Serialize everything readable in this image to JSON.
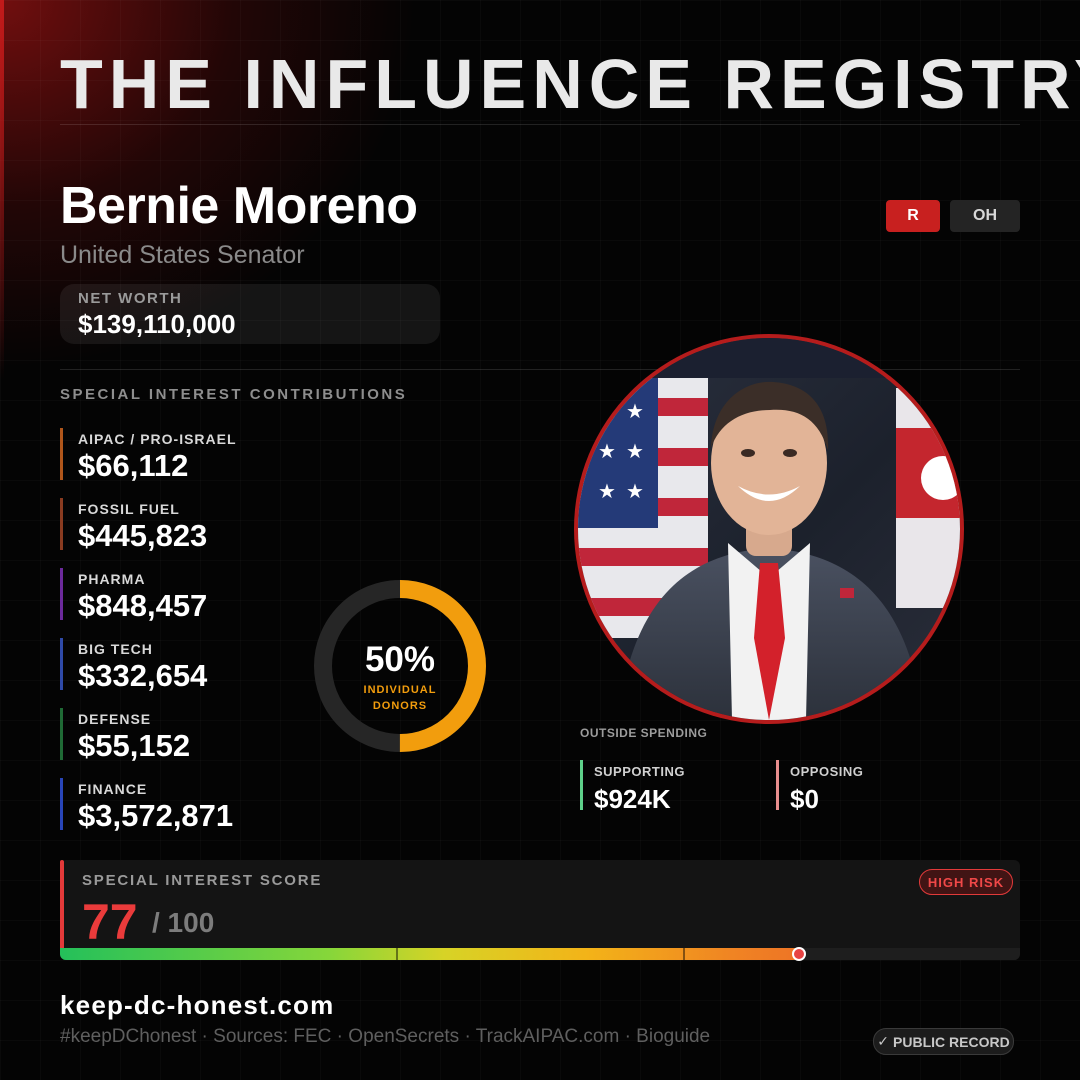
{
  "header": {
    "title": "THE INFLUENCE REGISTRY"
  },
  "profile": {
    "name": "Bernie Moreno",
    "role": "United States Senator",
    "party": "R",
    "state": "OH",
    "party_color": "#c8201f"
  },
  "net_worth": {
    "label": "NET WORTH",
    "value": "$139,110,000"
  },
  "contributions": {
    "label": "SPECIAL INTEREST CONTRIBUTIONS",
    "items": [
      {
        "label": "AIPAC / PRO-ISRAEL",
        "value": "$66,112",
        "color": "#b0561b"
      },
      {
        "label": "FOSSIL FUEL",
        "value": "$445,823",
        "color": "#8a3b20"
      },
      {
        "label": "PHARMA",
        "value": "$848,457",
        "color": "#6c2a9c"
      },
      {
        "label": "BIG TECH",
        "value": "$332,654",
        "color": "#2f4aa8"
      },
      {
        "label": "DEFENSE",
        "value": "$55,152",
        "color": "#1f6a35"
      },
      {
        "label": "FINANCE",
        "value": "$3,572,871",
        "color": "#2845b8"
      }
    ]
  },
  "donors": {
    "percent_label": "50%",
    "percent_value": 50,
    "line1": "INDIVIDUAL",
    "line2": "DONORS",
    "color": "#f29d0d"
  },
  "outside_spending": {
    "label": "OUTSIDE SPENDING",
    "supporting": {
      "label": "SUPPORTING",
      "value": "$924K",
      "color": "#5ed08a"
    },
    "opposing": {
      "label": "OPPOSING",
      "value": "$0",
      "color": "#e88e8e"
    }
  },
  "score": {
    "label": "SPECIAL INTEREST SCORE",
    "value": "77",
    "max": "/ 100",
    "fraction": 0.77,
    "risk": "HIGH RISK"
  },
  "footer": {
    "site": "keep-dc-honest.com",
    "note": "#keepDChonest  ·  Sources: FEC · OpenSecrets · TrackAIPAC.com · Bioguide",
    "badge_icon": "✓",
    "badge_text": "PUBLIC RECORD"
  }
}
